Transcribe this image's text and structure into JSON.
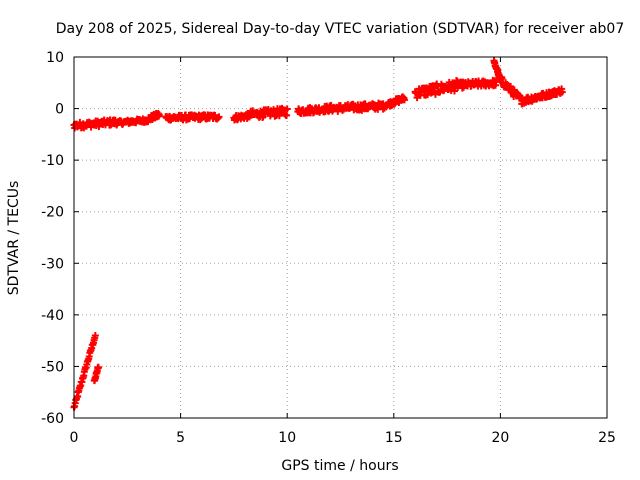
{
  "chart_data": {
    "type": "scatter",
    "title": "Day 208 of 2025, Sidereal Day-to-day VTEC variation (SDTVAR) for receiver ab07",
    "xlabel": "GPS time / hours",
    "ylabel": "SDTVAR / TECUs",
    "xlim": [
      0,
      25
    ],
    "ylim": [
      -60,
      10
    ],
    "xticks": [
      0,
      5,
      10,
      15,
      20,
      25
    ],
    "yticks": [
      -60,
      -50,
      -40,
      -30,
      -20,
      -10,
      0,
      10
    ],
    "grid": true,
    "marker": "+",
    "color": "#ff0000",
    "segments": [
      {
        "x": [
          0.0,
          1.0
        ],
        "y": [
          -58,
          -44
        ],
        "spread": 0.6
      },
      {
        "x": [
          0.95,
          1.15
        ],
        "y": [
          -53,
          -50
        ],
        "spread": 0.6
      },
      {
        "x": [
          0.0,
          2.0
        ],
        "y": [
          -3.3,
          -2.6
        ],
        "spread": 1.2
      },
      {
        "x": [
          2.0,
          3.5
        ],
        "y": [
          -2.8,
          -2.2
        ],
        "spread": 0.8
      },
      {
        "x": [
          3.5,
          4.0
        ],
        "y": [
          -2.0,
          -1.2
        ],
        "spread": 1.0
      },
      {
        "x": [
          4.3,
          6.8
        ],
        "y": [
          -1.8,
          -1.6
        ],
        "spread": 1.0
      },
      {
        "x": [
          7.5,
          8.2
        ],
        "y": [
          -1.8,
          -1.4
        ],
        "spread": 1.0
      },
      {
        "x": [
          8.2,
          10.0
        ],
        "y": [
          -1.2,
          -0.6
        ],
        "spread": 1.5
      },
      {
        "x": [
          10.5,
          12.0
        ],
        "y": [
          -0.5,
          0.0
        ],
        "spread": 1.2
      },
      {
        "x": [
          12.0,
          14.5
        ],
        "y": [
          0.0,
          0.5
        ],
        "spread": 1.3
      },
      {
        "x": [
          14.5,
          15.5
        ],
        "y": [
          0.5,
          2.0
        ],
        "spread": 1.0
      },
      {
        "x": [
          16.0,
          18.0
        ],
        "y": [
          3.0,
          4.5
        ],
        "spread": 2.0
      },
      {
        "x": [
          18.0,
          19.8
        ],
        "y": [
          4.5,
          5.0
        ],
        "spread": 1.2
      },
      {
        "x": [
          19.7,
          19.9
        ],
        "y": [
          9.0,
          7.0
        ],
        "spread": 0.6
      },
      {
        "x": [
          19.9,
          21.0
        ],
        "y": [
          6.0,
          1.5
        ],
        "spread": 1.5
      },
      {
        "x": [
          21.0,
          22.0
        ],
        "y": [
          1.5,
          2.5
        ],
        "spread": 1.2
      },
      {
        "x": [
          22.0,
          22.9
        ],
        "y": [
          2.5,
          3.5
        ],
        "spread": 1.0
      }
    ]
  }
}
